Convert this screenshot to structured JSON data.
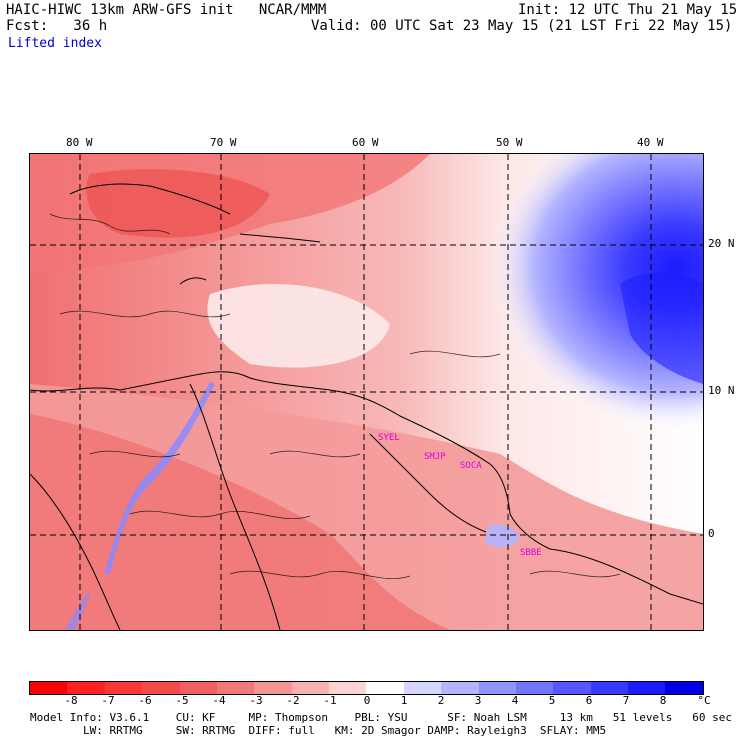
{
  "header": {
    "model": "HAIC-HIWC 13km ARW-GFS init   NCAR/MMM",
    "init": "Init: 12 UTC Thu 21 May 15",
    "fcst": "Fcst:   36 h",
    "valid": "Valid: 00 UTC Sat 23 May 15 (21 LST Fri 22 May 15)",
    "field": "Lifted index"
  },
  "map": {
    "longitude_labels": [
      "80 W",
      "70 W",
      "60 W",
      "50 W",
      "40 W"
    ],
    "latitude_labels": [
      "20 N",
      "10 N",
      "0"
    ],
    "stations": [
      "SYEL",
      "SMJP",
      "SOCA",
      "SBBE"
    ]
  },
  "colorbar": {
    "ticks": [
      "-8",
      "-7",
      "-6",
      "-5",
      "-4",
      "-3",
      "-2",
      "-1",
      "0",
      "1",
      "2",
      "3",
      "4",
      "5",
      "6",
      "7",
      "8"
    ],
    "unit": "°C",
    "colors": [
      "#ff0000",
      "#ff2020",
      "#f83838",
      "#f44a4a",
      "#f06060",
      "#f07878",
      "#f49494",
      "#f8b0b0",
      "#fcd4d4",
      "#ffffff",
      "#d6d6ff",
      "#b4b4ff",
      "#9494ff",
      "#7474ff",
      "#5656ff",
      "#3838ff",
      "#1c1cff",
      "#0000e8"
    ]
  },
  "footer": {
    "line1": "Model Info: V3.6.1    CU: KF     MP: Thompson    PBL: YSU      SF: Noah LSM     13 km   51 levels   60 sec",
    "line2": "        LW: RRTMG     SW: RRTMG  DIFF: full   KM: 2D Smagor DAMP: Rayleigh3  SFLAY: MM5"
  }
}
